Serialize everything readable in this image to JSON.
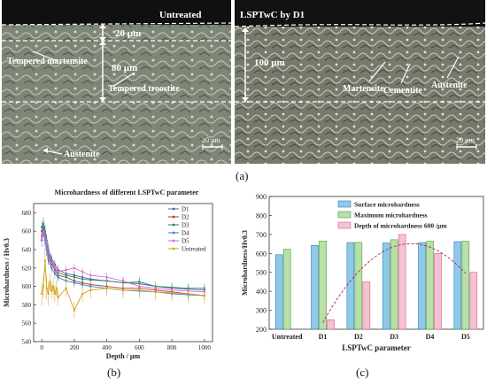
{
  "panel_a": {
    "left": {
      "header": "Untreated",
      "labels": {
        "layer1": "20 µm",
        "layer2": "80 µm",
        "martensite": "Tempered martensite",
        "troostite": "Tempered troostite",
        "austenite": "Austenite",
        "scale": "20 µm"
      }
    },
    "right": {
      "header": "LSPTwC by D1",
      "labels": {
        "depth": "100 µm",
        "martensite": "Martensite",
        "cementite": "Cementite",
        "austenite": "Austenite",
        "scale": "20 µm"
      }
    }
  },
  "captions": {
    "a": "(a)",
    "b": "(b)",
    "c": "(c)"
  },
  "chart_data": [
    {
      "type": "line",
      "title": "Microhardness of different LSPTwC parameter",
      "xlabel": "Depth / µm",
      "ylabel": "Microhardness / Hv0.3",
      "xlim": [
        -50,
        1050
      ],
      "ylim": [
        540,
        690
      ],
      "xticks": [
        0,
        200,
        400,
        600,
        800,
        1000
      ],
      "yticks": [
        540,
        560,
        580,
        600,
        620,
        640,
        660,
        680
      ],
      "legend": "top-right",
      "series": [
        {
          "name": "D1",
          "color": "#4a5fc0",
          "x": [
            0,
            10,
            20,
            30,
            40,
            60,
            80,
            100,
            150,
            200,
            250,
            300,
            400,
            500,
            600,
            700,
            800,
            900,
            1000
          ],
          "y": [
            655,
            665,
            658,
            648,
            640,
            630,
            624,
            618,
            614,
            612,
            610,
            608,
            606,
            604,
            603,
            600,
            598,
            597,
            596
          ]
        },
        {
          "name": "D2",
          "color": "#c0392b",
          "x": [
            0,
            10,
            20,
            30,
            40,
            60,
            80,
            100,
            150,
            200,
            250,
            300,
            400,
            500,
            600,
            700,
            800,
            900,
            1000
          ],
          "y": [
            660,
            662,
            652,
            642,
            632,
            624,
            618,
            612,
            610,
            606,
            604,
            602,
            600,
            598,
            598,
            596,
            594,
            592,
            590
          ]
        },
        {
          "name": "D3",
          "color": "#1f8a5c",
          "x": [
            0,
            10,
            20,
            30,
            40,
            60,
            80,
            100,
            150,
            200,
            250,
            300,
            400,
            500,
            600,
            700,
            800,
            900,
            1000
          ],
          "y": [
            664,
            668,
            660,
            650,
            638,
            628,
            620,
            615,
            612,
            610,
            608,
            607,
            606,
            604,
            605,
            600,
            599,
            598,
            598
          ]
        },
        {
          "name": "D4",
          "color": "#2e86c1",
          "x": [
            0,
            10,
            20,
            30,
            40,
            60,
            80,
            100,
            150,
            200,
            250,
            300,
            400,
            500,
            600,
            700,
            800,
            900,
            1000
          ],
          "y": [
            650,
            660,
            650,
            640,
            630,
            620,
            614,
            610,
            606,
            604,
            602,
            600,
            598,
            596,
            595,
            594,
            592,
            591,
            590
          ]
        },
        {
          "name": "D5",
          "color": "#d46ad8",
          "x": [
            0,
            10,
            20,
            30,
            40,
            60,
            80,
            100,
            150,
            200,
            250,
            300,
            400,
            500,
            600,
            700,
            800,
            900,
            1000
          ],
          "y": [
            652,
            660,
            654,
            645,
            636,
            626,
            620,
            616,
            618,
            620,
            616,
            612,
            610,
            606,
            600,
            598,
            596,
            595,
            594
          ]
        },
        {
          "name": "Untreated",
          "color": "#d4a017",
          "x": [
            0,
            10,
            20,
            30,
            40,
            50,
            60,
            70,
            80,
            90,
            100,
            150,
            200,
            250,
            300,
            400,
            500,
            600,
            700,
            800,
            900,
            1000
          ],
          "y": [
            592,
            600,
            628,
            598,
            592,
            605,
            595,
            600,
            592,
            598,
            588,
            598,
            574,
            592,
            596,
            598,
            596,
            596,
            594,
            593,
            592,
            590
          ]
        }
      ]
    },
    {
      "type": "bar",
      "xlabel": "LSPTwC parameter",
      "ylabel": "Microhardness/Hv0.3",
      "ylim": [
        200,
        900
      ],
      "yticks": [
        200,
        300,
        400,
        500,
        600,
        700,
        800,
        900
      ],
      "legend": "top-center",
      "categories": [
        "Untreated",
        "D1",
        "D2",
        "D3",
        "D4",
        "D5"
      ],
      "series": [
        {
          "name": "Surface microhardness",
          "color": "#8ecae6",
          "values": [
            593,
            642,
            657,
            655,
            657,
            662
          ]
        },
        {
          "name": "Maximum microhardness",
          "color": "#b8e0a8",
          "values": [
            622,
            665,
            658,
            672,
            664,
            664
          ]
        },
        {
          "name": "Depth of microhardness 600 /µm",
          "color": "#f6c1d2",
          "values": [
            null,
            250,
            450,
            700,
            600,
            500
          ]
        }
      ],
      "trend": "quadratic fit through depth values (dashed)"
    }
  ]
}
